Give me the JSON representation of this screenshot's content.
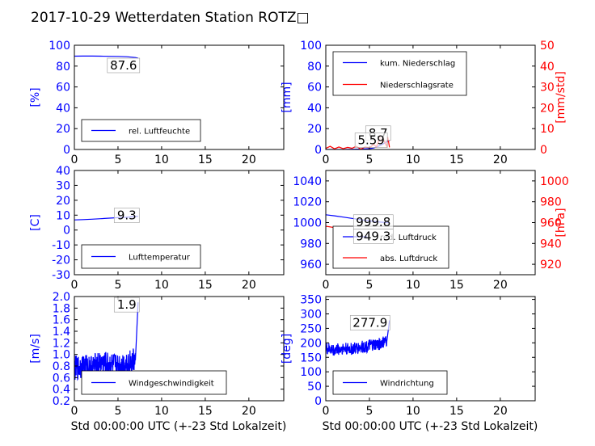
{
  "figure": {
    "title": "2017-10-29 Wetterdaten Station ROTZ□",
    "xlabel": "Std 00:00:00 UTC (+-23 Std Lokalzeit)"
  },
  "colors": {
    "primary": "#0000ff",
    "secondary": "#ff0000",
    "axes": "#000000"
  },
  "chart_data": [
    {
      "type": "line",
      "panel": "humidity",
      "xlim": [
        0,
        24
      ],
      "xticks": [
        0,
        5,
        10,
        15,
        20
      ],
      "ylim": [
        0,
        100
      ],
      "yticks": [
        0,
        20,
        40,
        60,
        80,
        100
      ],
      "ylabel": "[%]",
      "legend": "bottom-left",
      "series": [
        {
          "name": "rel. Luftfeuchte",
          "color": "#0000ff",
          "x": [
            0,
            1,
            2,
            3,
            4,
            5,
            6,
            7,
            7.3
          ],
          "y": [
            89.5,
            89.6,
            89.6,
            89.5,
            89.4,
            89.3,
            89,
            88.2,
            87.6
          ]
        }
      ],
      "annotations": [
        {
          "text": "87.6",
          "x": 7.3,
          "y": 87.6
        }
      ]
    },
    {
      "type": "line",
      "panel": "precipitation",
      "xlim": [
        0,
        24
      ],
      "xticks": [
        0,
        5,
        10,
        15,
        20
      ],
      "ylim": [
        0,
        100
      ],
      "yticks": [
        0,
        20,
        40,
        60,
        80,
        100
      ],
      "ylabel": "[mm]",
      "y2lim": [
        0,
        50
      ],
      "y2ticks": [
        0,
        10,
        20,
        30,
        40,
        50
      ],
      "y2label": "[mm/std]",
      "legend": "top-left",
      "series": [
        {
          "name": "kum. Niederschlag",
          "color": "#0000ff",
          "axis": "left",
          "x": [
            0,
            1,
            2,
            3,
            4,
            5,
            5.5,
            6,
            6.5,
            7,
            7.3
          ],
          "y": [
            0,
            0,
            0,
            0.2,
            0.4,
            0.8,
            1.5,
            3.0,
            5.0,
            7.5,
            8.7
          ]
        },
        {
          "name": "Niederschlagsrate",
          "color": "#ff0000",
          "axis": "right",
          "x": [
            0,
            0.5,
            1,
            1.5,
            2,
            2.5,
            3,
            3.5,
            4,
            4.5,
            5,
            5.5,
            5.8,
            6,
            6.2,
            6.4,
            6.6,
            6.8,
            7,
            7.1,
            7.3
          ],
          "y": [
            0.5,
            1.5,
            0.3,
            1.2,
            0.4,
            1,
            0.6,
            1.5,
            0.2,
            1.2,
            0.8,
            2.5,
            1.2,
            3.5,
            6.5,
            4,
            5.6,
            3,
            1.5,
            6,
            1
          ]
        }
      ],
      "annotations": [
        {
          "text": "8.7",
          "x": 7.3,
          "y": 8.7
        },
        {
          "text": "5.59",
          "x": 6.5,
          "y": 5.59
        }
      ]
    },
    {
      "type": "line",
      "panel": "temperature",
      "xlim": [
        0,
        24
      ],
      "xticks": [
        0,
        5,
        10,
        15,
        20
      ],
      "ylim": [
        -30,
        40
      ],
      "yticks": [
        -30,
        -20,
        -10,
        0,
        10,
        20,
        30,
        40
      ],
      "ylabel": "[C]",
      "legend": "bottom-left",
      "series": [
        {
          "name": "Lufttemperatur",
          "color": "#0000ff",
          "x": [
            0,
            1,
            2,
            3,
            4,
            5,
            6,
            7,
            7.3
          ],
          "y": [
            6.8,
            7,
            7.3,
            7.6,
            8,
            8.3,
            8.6,
            9.1,
            9.3
          ]
        }
      ],
      "annotations": [
        {
          "text": "9.3",
          "x": 7.3,
          "y": 9.3
        }
      ]
    },
    {
      "type": "line",
      "panel": "pressure",
      "xlim": [
        0,
        24
      ],
      "xticks": [
        0,
        5,
        10,
        15,
        20
      ],
      "ylim": [
        950,
        1050
      ],
      "yticks": [
        960,
        980,
        1000,
        1020,
        1040
      ],
      "ylabel": "",
      "y2lim": [
        910,
        1010
      ],
      "y2ticks": [
        920,
        940,
        960,
        980,
        1000
      ],
      "y2label": "[hPa]",
      "legend": "bottom-right",
      "series": [
        {
          "name": "red. Luftdruck",
          "color": "#0000ff",
          "axis": "left",
          "x": [
            0,
            1,
            2,
            3,
            4,
            5,
            6,
            7,
            7.3
          ],
          "y": [
            1007.5,
            1006.5,
            1005.3,
            1004,
            1002.8,
            1001.6,
            1000.7,
            1000,
            999.8
          ]
        },
        {
          "name": "abs. Luftdruck",
          "color": "#ff0000",
          "axis": "right",
          "x": [
            0,
            1,
            2,
            3,
            4,
            5,
            6,
            7,
            7.3
          ],
          "y": [
            956.5,
            955.2,
            954,
            952.8,
            951.7,
            950.7,
            949.9,
            949.4,
            949.3
          ]
        }
      ],
      "annotations": [
        {
          "text": "999.8",
          "x": 7.3,
          "y": 999.8
        },
        {
          "text": "949.3",
          "x": 7.3,
          "y": 949.3
        }
      ]
    },
    {
      "type": "line",
      "panel": "wind-speed",
      "xlim": [
        0,
        24
      ],
      "xticks": [
        0,
        5,
        10,
        15,
        20
      ],
      "ylim": [
        0.2,
        2.0
      ],
      "yticks": [
        0.2,
        0.4,
        0.6,
        0.8,
        1.0,
        1.2,
        1.4,
        1.6,
        1.8,
        2.0
      ],
      "ylabel": "[m/s]",
      "legend": "bottom-right",
      "series": [
        {
          "name": "Windgeschwindigkeit",
          "color": "#0000ff",
          "noisy": true,
          "x": [
            0,
            1,
            2,
            3,
            4,
            5,
            6,
            7,
            7.3
          ],
          "y": [
            0.75,
            0.8,
            0.78,
            0.85,
            0.82,
            0.8,
            0.85,
            0.9,
            1.9
          ]
        }
      ],
      "annotations": [
        {
          "text": "1.9",
          "x": 7.3,
          "y": 1.9
        }
      ]
    },
    {
      "type": "line",
      "panel": "wind-direction",
      "xlim": [
        0,
        24
      ],
      "xticks": [
        0,
        5,
        10,
        15,
        20
      ],
      "ylim": [
        0,
        360
      ],
      "yticks": [
        0,
        50,
        100,
        150,
        200,
        250,
        300,
        350
      ],
      "ylabel": "[deg]",
      "legend": "bottom-left",
      "series": [
        {
          "name": "Windrichtung",
          "color": "#0000ff",
          "noisy": true,
          "x": [
            0,
            1,
            2,
            3,
            4,
            5,
            6,
            7,
            7.3
          ],
          "y": [
            180,
            175,
            182,
            178,
            185,
            190,
            195,
            205,
            277.9
          ]
        }
      ],
      "annotations": [
        {
          "text": "277.9",
          "x": 7.3,
          "y": 277.9
        }
      ]
    }
  ]
}
